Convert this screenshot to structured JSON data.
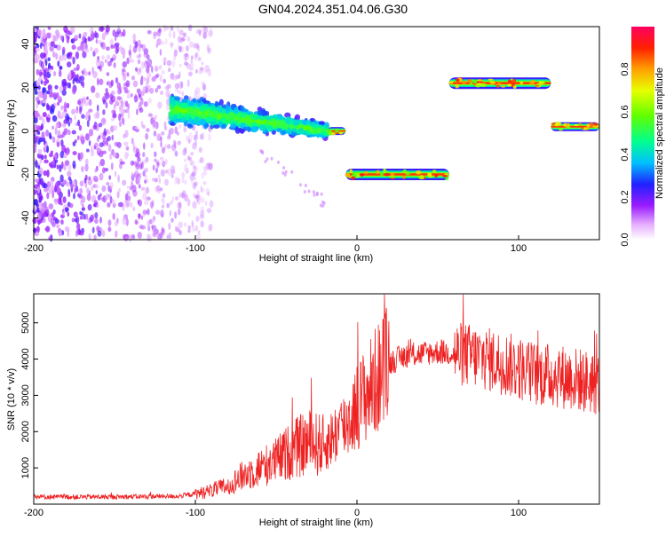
{
  "title": "GN04.2024.351.04.06.G30",
  "chart_data": [
    {
      "type": "heatmap",
      "xlabel": "Height of straight line (km)",
      "ylabel": "Frequency (Hz)",
      "xlim": [
        -200,
        150
      ],
      "ylim": [
        -50,
        48
      ],
      "x_ticks": [
        "-200",
        "-100",
        "0",
        "100"
      ],
      "y_ticks": [
        "-40",
        "-20",
        "0",
        "20",
        "40"
      ],
      "colorbar": {
        "label": "Normalized spectral amplitude",
        "range": [
          0,
          1
        ],
        "ticks": [
          "0.0",
          "0.2",
          "0.4",
          "0.6",
          "0.8"
        ]
      },
      "segments": [
        {
          "name": "noise",
          "x_range": [
            -200,
            -90
          ],
          "freq_range": [
            -50,
            48
          ]
        },
        {
          "name": "descending-band",
          "x_range": [
            -115,
            -18
          ],
          "freq_start": 10,
          "freq_end": 0
        },
        {
          "name": "band-2",
          "x_range": [
            -18,
            -7
          ],
          "freq": 0
        },
        {
          "name": "band-3",
          "x_range": [
            -7,
            57
          ],
          "freq": -20
        },
        {
          "name": "band-4",
          "x_range": [
            57,
            120
          ],
          "freq": 22
        },
        {
          "name": "band-5",
          "x_range": [
            120,
            150
          ],
          "freq": 2
        }
      ]
    },
    {
      "type": "line",
      "xlabel": "Height of straight line (km)",
      "ylabel": "SNR (10 * v/v)",
      "xlim": [
        -200,
        150
      ],
      "ylim": [
        0,
        5800
      ],
      "x_ticks": [
        "-200",
        "-100",
        "0",
        "100"
      ],
      "y_ticks": [
        "1000",
        "2000",
        "3000",
        "4000",
        "5000"
      ],
      "color": "#ee2222",
      "trend": {
        "x": [
          -200,
          -150,
          -110,
          -95,
          -80,
          -70,
          -60,
          -50,
          -40,
          -30,
          -20,
          -10,
          -5,
          0,
          10,
          20,
          30,
          50,
          70,
          90,
          110,
          130,
          150
        ],
        "y": [
          200,
          200,
          220,
          320,
          500,
          800,
          1000,
          1200,
          1500,
          1700,
          1600,
          2100,
          2300,
          2700,
          3300,
          3900,
          4100,
          4200,
          4100,
          3900,
          3600,
          3500,
          3300
        ]
      }
    }
  ]
}
